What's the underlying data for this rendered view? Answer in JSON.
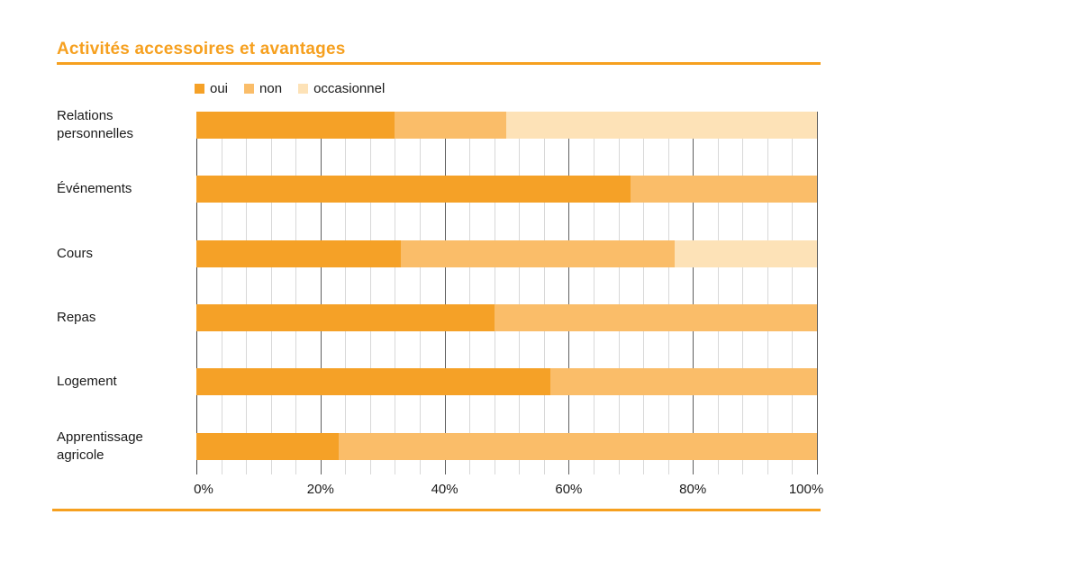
{
  "header": {
    "title": "Activités accessoires et avantages"
  },
  "colors": {
    "accent_orange": "#F6A01F",
    "oui": "#F5A127",
    "non": "#FABD69",
    "occasionnel": "#FDE2B7",
    "grid_minor": "#d8d8d8",
    "grid_major": "#5f5f5f",
    "text": "#1a1a1a"
  },
  "chart_data": {
    "type": "bar",
    "orientation": "horizontal",
    "stacked": true,
    "title": "Activités accessoires et avantages",
    "categories": [
      "Relations personnelles",
      "Événements",
      "Cours",
      "Repas",
      "Logement",
      "Apprentissage agricole"
    ],
    "series": [
      {
        "name": "oui",
        "color": "#F5A127",
        "values": [
          32,
          70,
          33,
          48,
          57,
          23
        ]
      },
      {
        "name": "non",
        "color": "#FABD69",
        "values": [
          18,
          30,
          44,
          52,
          43,
          77
        ]
      },
      {
        "name": "occasionnel",
        "color": "#FDE2B7",
        "values": [
          50,
          0,
          23,
          0,
          0,
          0
        ]
      }
    ],
    "x_axis": {
      "tick_labels": [
        "0%",
        "20%",
        "40%",
        "60%",
        "80%",
        "100%"
      ],
      "range": [
        0,
        100
      ],
      "minor_step_pct": 4,
      "major_step_pct": 20
    },
    "grid": "vertical, minor + major",
    "legend_position": "top"
  }
}
